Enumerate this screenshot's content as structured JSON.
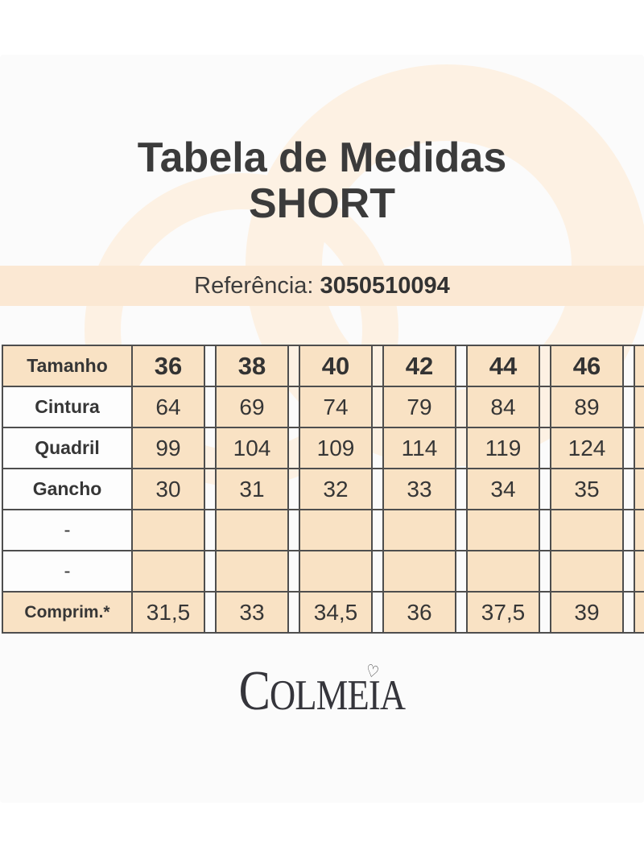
{
  "header": {
    "title_line1": "Tabela de Medidas",
    "title_line2": "SHORT"
  },
  "reference": {
    "label": "Referência:",
    "number": "3050510094"
  },
  "table": {
    "rows": [
      {
        "kind": "header",
        "label": "Tamanho",
        "values": [
          "36",
          "38",
          "40",
          "42",
          "44",
          "46"
        ]
      },
      {
        "kind": "body",
        "label": "Cintura",
        "values": [
          "64",
          "69",
          "74",
          "79",
          "84",
          "89"
        ]
      },
      {
        "kind": "body",
        "label": "Quadril",
        "values": [
          "99",
          "104",
          "109",
          "114",
          "119",
          "124"
        ]
      },
      {
        "kind": "body",
        "label": "Gancho",
        "values": [
          "30",
          "31",
          "32",
          "33",
          "34",
          "35"
        ]
      },
      {
        "kind": "empty",
        "label": "-",
        "values": [
          "",
          "",
          "",
          "",
          "",
          ""
        ]
      },
      {
        "kind": "empty",
        "label": "-",
        "values": [
          "",
          "",
          "",
          "",
          "",
          ""
        ]
      },
      {
        "kind": "footer",
        "label": "Comprim.*",
        "values": [
          "31,5",
          "33",
          "34,5",
          "36",
          "37,5",
          "39"
        ]
      }
    ]
  },
  "brand": {
    "name": "COLMEIA",
    "first_letter": "C",
    "mid_letters": "OLME",
    "i_letter": "I",
    "last_letter": "A",
    "heart_glyph": "♡"
  },
  "colors": {
    "card_background": "#fbfbfb",
    "watermark_peach": "#fdf1e3",
    "bar_peach": "#fbe8d3",
    "cell_peach": "#f9e2c4",
    "table_border": "#4e4e4e",
    "text_dark": "#3b3b3b"
  }
}
